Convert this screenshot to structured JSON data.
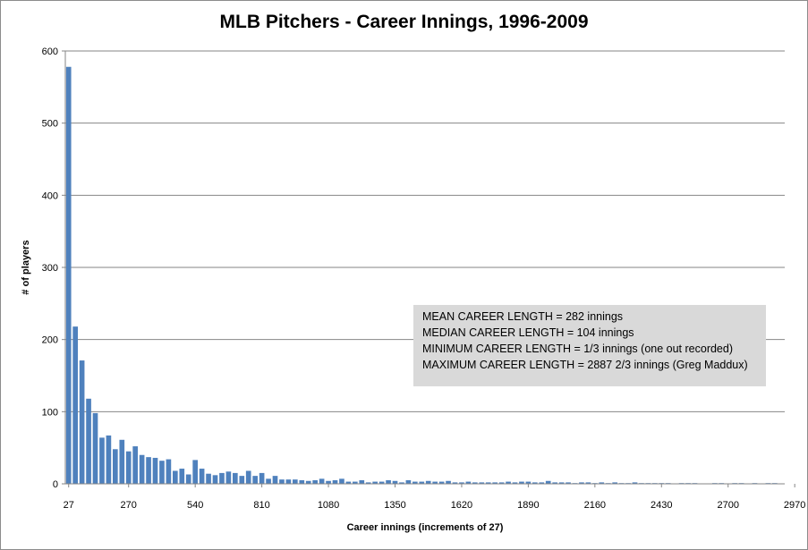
{
  "chart_data": {
    "type": "bar",
    "title": "MLB Pitchers - Career Innings, 1996-2009",
    "xlabel": "Career innings (increments of 27)",
    "ylabel": "# of players",
    "ylim": [
      0,
      600
    ],
    "yticks": [
      "0",
      "100",
      "200",
      "300",
      "400",
      "500",
      "600"
    ],
    "xticks": [
      "27",
      "270",
      "540",
      "810",
      "1080",
      "1350",
      "1620",
      "1890",
      "2160",
      "2430",
      "2700",
      "2970"
    ],
    "bin_width": 27,
    "x_first_bin": 27,
    "grid": true,
    "values": [
      578,
      218,
      171,
      118,
      98,
      64,
      67,
      48,
      61,
      45,
      52,
      40,
      37,
      36,
      32,
      34,
      18,
      21,
      13,
      33,
      21,
      14,
      12,
      15,
      17,
      15,
      11,
      18,
      11,
      15,
      7,
      11,
      6,
      6,
      6,
      5,
      4,
      5,
      7,
      4,
      5,
      7,
      3,
      3,
      5,
      2,
      3,
      3,
      5,
      4,
      2,
      5,
      3,
      3,
      4,
      3,
      3,
      4,
      2,
      2,
      3,
      2,
      2,
      2,
      2,
      2,
      3,
      2,
      3,
      3,
      2,
      2,
      4,
      2,
      2,
      2,
      1,
      2,
      2,
      1,
      2,
      1,
      2,
      1,
      1,
      2,
      1,
      1,
      1,
      1,
      1,
      0,
      1,
      1,
      1,
      0,
      0,
      1,
      1,
      0,
      1,
      1,
      0,
      1,
      0,
      1,
      1,
      0
    ]
  },
  "annotation": {
    "lines": [
      "MEAN CAREER LENGTH = 282 innings",
      "MEDIAN CAREER LENGTH = 104 innings",
      "MINIMUM CAREER LENGTH = 1/3 innings (one out recorded)",
      "MAXIMUM CAREER LENGTH = 2887 2/3 innings (Greg Maddux)"
    ]
  },
  "colors": {
    "bar": "#4f81bd",
    "gridline": "#868686",
    "annotation_bg": "#d9d9d9"
  }
}
